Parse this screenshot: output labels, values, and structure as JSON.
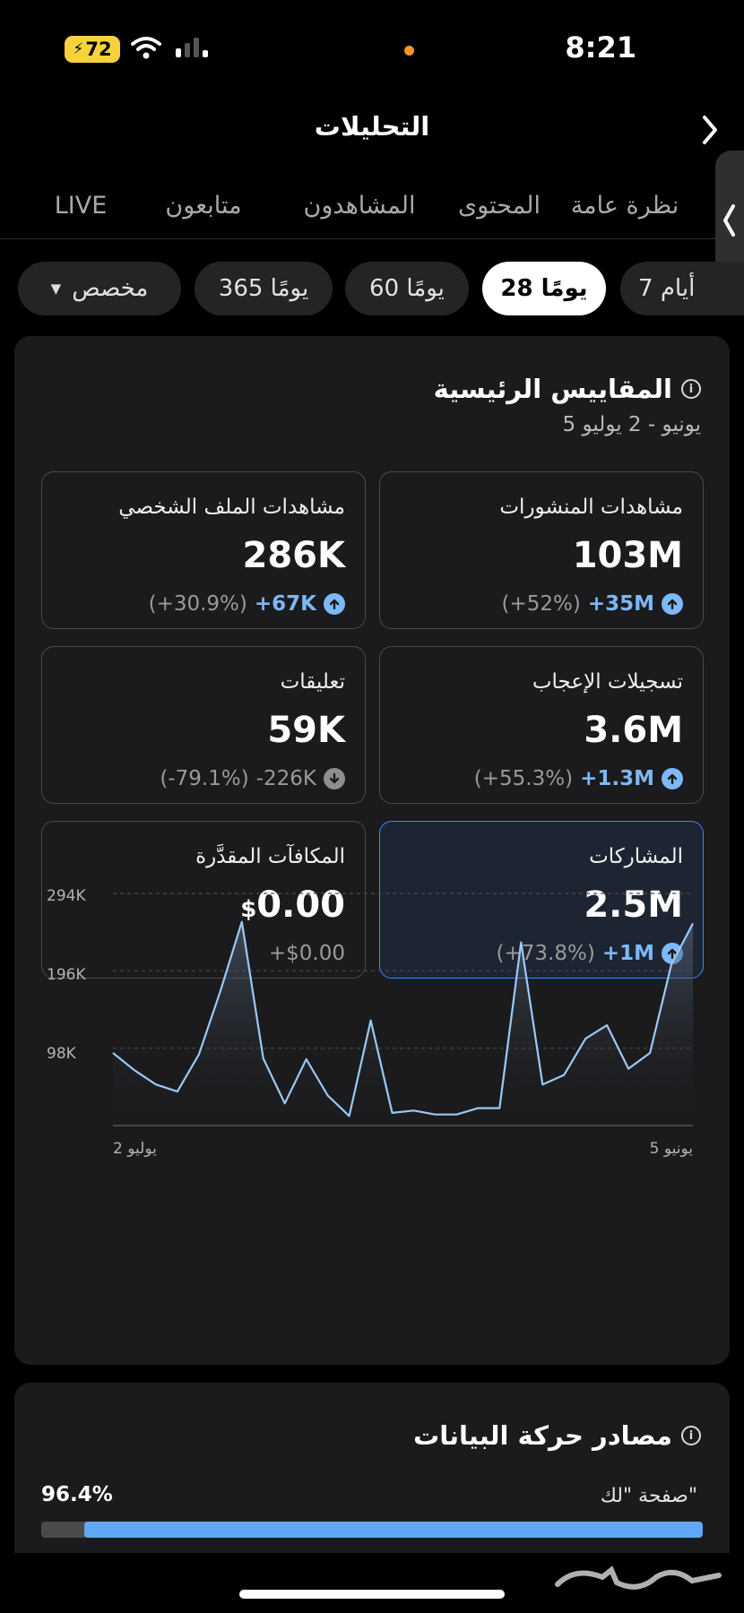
{
  "status_bar": {
    "time": "8:21",
    "battery": "72"
  },
  "header": {
    "title": "التحليلات"
  },
  "tabs": [
    {
      "label": "نظرة عامة",
      "active": true
    },
    {
      "label": "المحتوى",
      "active": false
    },
    {
      "label": "المشاهدون",
      "active": false
    },
    {
      "label": "متابعون",
      "active": false
    },
    {
      "label": "LIVE",
      "active": false
    }
  ],
  "ranges": [
    {
      "label": "7 أيام",
      "active": false
    },
    {
      "label": "28 يومًا",
      "active": true
    },
    {
      "label": "60 يومًا",
      "active": false
    },
    {
      "label": "365 يومًا",
      "active": false
    },
    {
      "label": "مخصص",
      "active": false
    }
  ],
  "key_metrics": {
    "title": "المقاييس الرئيسية",
    "date_range": "5 يونيو - 2 يوليو",
    "cards": [
      {
        "label": "مشاهدات المنشورات",
        "value": "103M",
        "delta": "+35M",
        "pct": "(+52%)",
        "direction": "up"
      },
      {
        "label": "مشاهدات الملف الشخصي",
        "value": "286K",
        "delta": "+67K",
        "pct": "(+30.9%)",
        "direction": "up"
      },
      {
        "label": "تسجيلات الإعجاب",
        "value": "3.6M",
        "delta": "+1.3M",
        "pct": "(+55.3%)",
        "direction": "up"
      },
      {
        "label": "تعليقات",
        "value": "59K",
        "delta": "-226K",
        "pct": "(-79.1%)",
        "direction": "down"
      },
      {
        "label": "المشاركات",
        "value": "2.5M",
        "delta": "+1M",
        "pct": "(+73.8%)",
        "direction": "up",
        "selected": true
      },
      {
        "label": "المكافآت المقدَّرة",
        "value": "0.00",
        "currency": "$",
        "delta": "+$0.00",
        "pct": "",
        "direction": "none"
      }
    ]
  },
  "chart_data": {
    "type": "area",
    "title": "",
    "x_start_label": "2 يوليو",
    "x_end_label": "5 يونيو",
    "y_tick_labels": [
      "294K",
      "196K",
      "98K"
    ],
    "y_ticks": [
      294,
      196,
      98
    ],
    "ylim": [
      0,
      294
    ],
    "y_unit": "K",
    "grid": true,
    "values_left_to_right": [
      92,
      70,
      52,
      43,
      90,
      170,
      258,
      85,
      28,
      84,
      38,
      12,
      133,
      16,
      19,
      14,
      14,
      22,
      22,
      232,
      52,
      64,
      110,
      127,
      72,
      92,
      204,
      256
    ]
  },
  "traffic_sources": {
    "title": "مصادر حركة البيانات",
    "items": [
      {
        "label": "صفحة \"لك\"",
        "percent_text": "96.4%",
        "percent": 96.4
      }
    ]
  },
  "colors": {
    "accent_blue": "#7db8f7",
    "selected_border": "#3a86ff",
    "bar_blue": "#5fa8f5",
    "battery_yellow": "#f6d33c",
    "orange_dot": "#f4962a"
  },
  "watermark": "حراج"
}
